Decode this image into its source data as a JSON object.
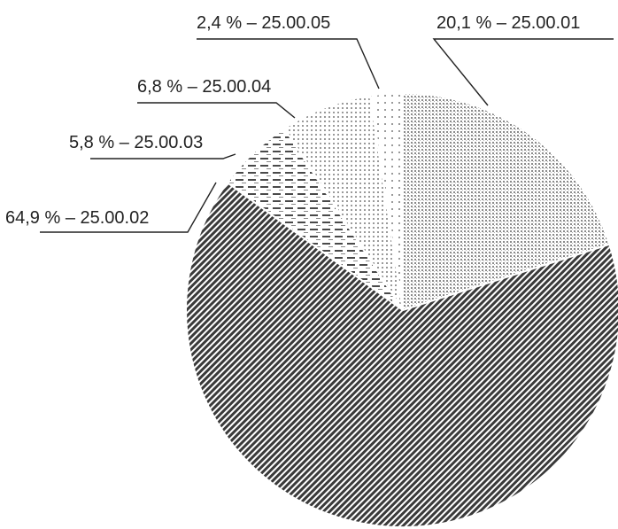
{
  "chart_data": {
    "type": "pie",
    "start_angle_deg": 0,
    "direction": "clockwise",
    "slices": [
      {
        "label": "20,1 % – 25.00.01",
        "value": 20.1,
        "pattern": "fine-dots"
      },
      {
        "label": "64,9 % – 25.00.02",
        "value": 64.9,
        "pattern": "diagonal-hatch"
      },
      {
        "label": "5,8 % – 25.00.03",
        "value": 5.8,
        "pattern": "horizontal-dashes"
      },
      {
        "label": "6,8 % – 25.00.04",
        "value": 6.8,
        "pattern": "sparse-dots"
      },
      {
        "label": "2,4 % – 25.00.05",
        "value": 2.4,
        "pattern": "very-sparse-dots"
      }
    ]
  }
}
